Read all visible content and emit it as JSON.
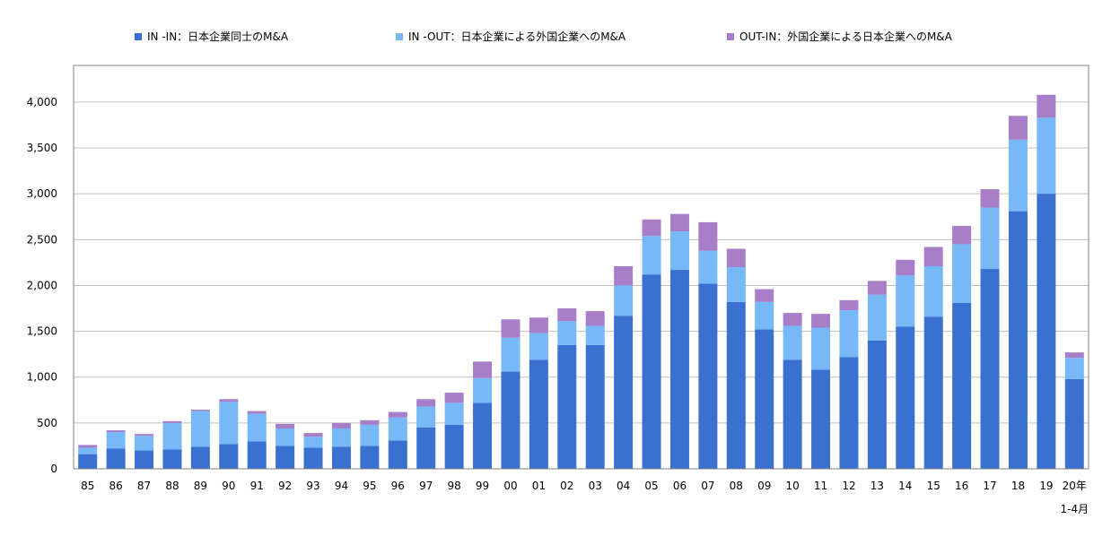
{
  "chart_data": {
    "type": "bar",
    "stacked": true,
    "grid": true,
    "legend_position": "top",
    "ylim": [
      0,
      4400
    ],
    "y_ticks": [
      "0",
      "500",
      "1,000",
      "1,500",
      "2,000",
      "2,500",
      "3,000",
      "3,500",
      "4,000"
    ],
    "y_tick_values": [
      0,
      500,
      1000,
      1500,
      2000,
      2500,
      3000,
      3500,
      4000
    ],
    "categories": [
      "85",
      "86",
      "87",
      "88",
      "89",
      "90",
      "91",
      "92",
      "93",
      "94",
      "95",
      "96",
      "97",
      "98",
      "99",
      "00",
      "01",
      "02",
      "03",
      "04",
      "05",
      "06",
      "07",
      "08",
      "09",
      "10",
      "11",
      "12",
      "13",
      "14",
      "15",
      "16",
      "17",
      "18",
      "19",
      "20年"
    ],
    "last_category_sublabel": "1-4月",
    "series": [
      {
        "name": "IN -IN：日本企業同士のM&A",
        "color": "#3a70d0",
        "values": [
          160,
          220,
          200,
          210,
          240,
          270,
          300,
          250,
          230,
          240,
          250,
          310,
          450,
          480,
          720,
          1060,
          1190,
          1350,
          1350,
          1670,
          2120,
          2170,
          2020,
          1820,
          1520,
          1190,
          1080,
          1220,
          1400,
          1550,
          1660,
          1810,
          2180,
          2810,
          3000,
          980
        ]
      },
      {
        "name": "IN -OUT：日本企業による外国企業へのM&A",
        "color": "#77b8f6",
        "values": [
          70,
          180,
          160,
          290,
          390,
          460,
          300,
          190,
          120,
          200,
          230,
          250,
          230,
          240,
          270,
          370,
          290,
          260,
          210,
          330,
          420,
          420,
          360,
          380,
          300,
          370,
          460,
          510,
          500,
          560,
          550,
          640,
          670,
          780,
          830,
          230
        ]
      },
      {
        "name": "OUT-IN：外国企業による日本企業へのM&A",
        "color": "#a97ec8",
        "values": [
          30,
          20,
          20,
          20,
          15,
          30,
          30,
          50,
          40,
          60,
          50,
          60,
          80,
          110,
          180,
          200,
          170,
          140,
          160,
          210,
          180,
          190,
          310,
          200,
          140,
          140,
          150,
          110,
          150,
          170,
          210,
          200,
          200,
          260,
          250,
          60
        ]
      }
    ]
  }
}
